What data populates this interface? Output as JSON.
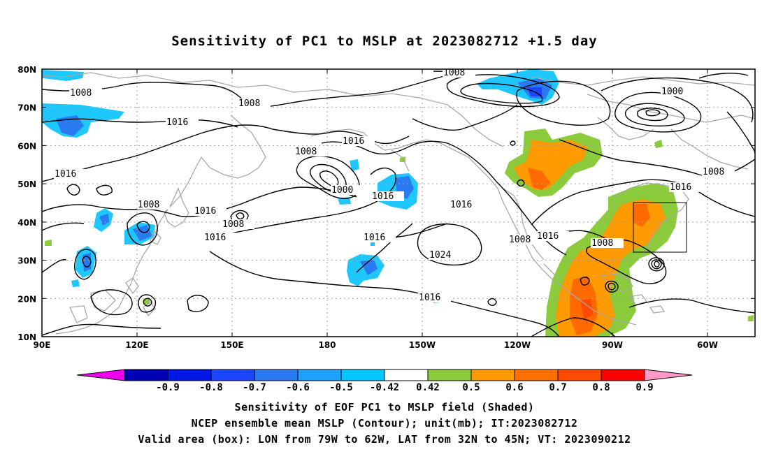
{
  "title": "Sensitivity of PC1 to MSLP at 2023082712 +1.5 day",
  "latitude_labels": [
    "80N",
    "70N",
    "60N",
    "50N",
    "40N",
    "30N",
    "20N",
    "10N"
  ],
  "longitude_labels": [
    "90E",
    "120E",
    "150E",
    "180",
    "150W",
    "120W",
    "90W",
    "60W"
  ],
  "contour_labels": [
    "1008",
    "1008",
    "1000",
    "1008",
    "1016",
    "1016",
    "1016",
    "1008",
    "1000",
    "1016",
    "1008",
    "1016",
    "1016",
    "1008",
    "1016",
    "1016",
    "1024",
    "1008",
    "1016",
    "1008",
    "1016",
    "1008",
    "1016"
  ],
  "colorbar": {
    "labels": [
      "-0.9",
      "-0.8",
      "-0.7",
      "-0.6",
      "-0.5",
      "-0.42",
      "0.42",
      "0.5",
      "0.6",
      "0.7",
      "0.8",
      "0.9"
    ],
    "colors": [
      "#ee00ee",
      "#0000b4",
      "#0018e6",
      "#1c46ff",
      "#2a7af2",
      "#1ea0ff",
      "#00c8ff",
      "#ffffff",
      "#8ccc3c",
      "#ff9a00",
      "#ff7000",
      "#ff4a00",
      "#ff0000",
      "#ff9ac8"
    ]
  },
  "captions": {
    "line1": "Sensitivity of EOF PC1 to MSLP field (Shaded)",
    "line2": "NCEP ensemble mean MSLP (Contour); unit(mb); IT:2023082712",
    "line3": "Valid area (box): LON from 79W to 62W, LAT from 32N to 45N; VT: 2023090212"
  },
  "map_colors": {
    "coast": "#a8a8a8",
    "grid": "#a0a0a0",
    "contour": "#000000",
    "neg_light": "#1ec8ff",
    "neg_mid": "#2a7af2",
    "pos_green": "#8ccc3c",
    "pos_orange": "#ff9a00",
    "pos_red": "#ff6a00"
  }
}
